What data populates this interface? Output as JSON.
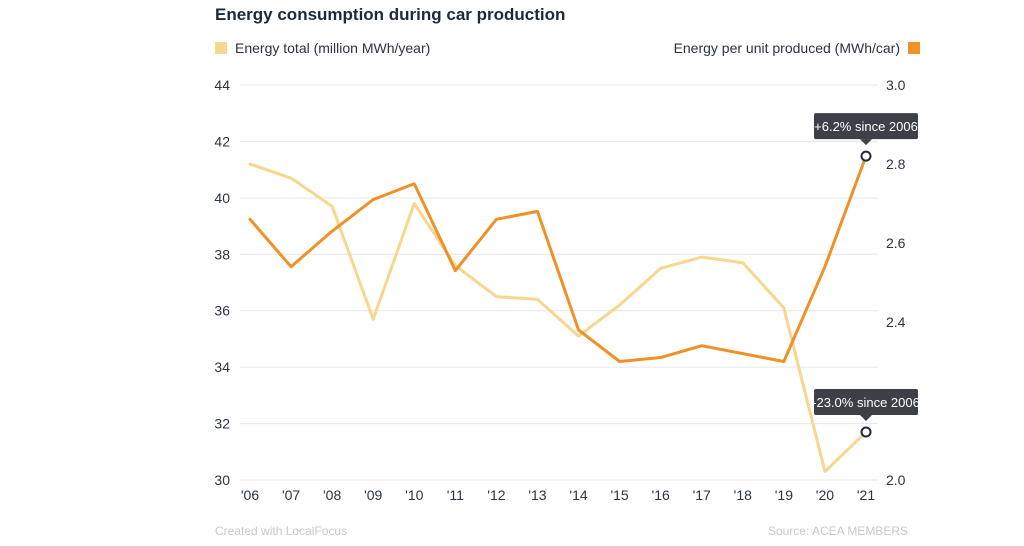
{
  "chart_data": {
    "type": "line",
    "title": "Energy consumption during car production",
    "x": [
      "'06",
      "'07",
      "'08",
      "'09",
      "'10",
      "'11",
      "'12",
      "'13",
      "'14",
      "'15",
      "'16",
      "'17",
      "'18",
      "'19",
      "'20",
      "'21"
    ],
    "series": [
      {
        "name": "Energy total (million MWh/year)",
        "axis": "left",
        "color": "#f7d78e",
        "values": [
          41.2,
          40.7,
          39.7,
          35.7,
          39.8,
          37.6,
          36.5,
          36.4,
          35.1,
          36.2,
          37.5,
          37.9,
          37.7,
          36.1,
          30.3,
          31.7
        ]
      },
      {
        "name": "Energy per unit produced (MWh/car)",
        "axis": "right",
        "color": "#ee9228",
        "values": [
          2.66,
          2.54,
          2.63,
          2.71,
          2.75,
          2.53,
          2.66,
          2.68,
          2.38,
          2.3,
          2.31,
          2.34,
          2.32,
          2.3,
          2.54,
          2.82
        ]
      }
    ],
    "y_left": {
      "ticks": [
        30,
        32,
        34,
        36,
        38,
        40,
        42,
        44
      ],
      "range": [
        30,
        44
      ]
    },
    "y_right": {
      "ticks": [
        2.0,
        2.2,
        2.4,
        2.6,
        2.8,
        3.0
      ],
      "range": [
        2.0,
        3.0
      ]
    },
    "grid": true,
    "legend": "top",
    "annotations": [
      {
        "text": "+6.2% since 2006",
        "series": 1,
        "index": 15
      },
      {
        "text": "-23.0% since 2006",
        "series": 0,
        "index": 15
      }
    ]
  },
  "footer": {
    "credit": "Created with LocalFocus",
    "source": "Source:  ACEA MEMBERS"
  }
}
